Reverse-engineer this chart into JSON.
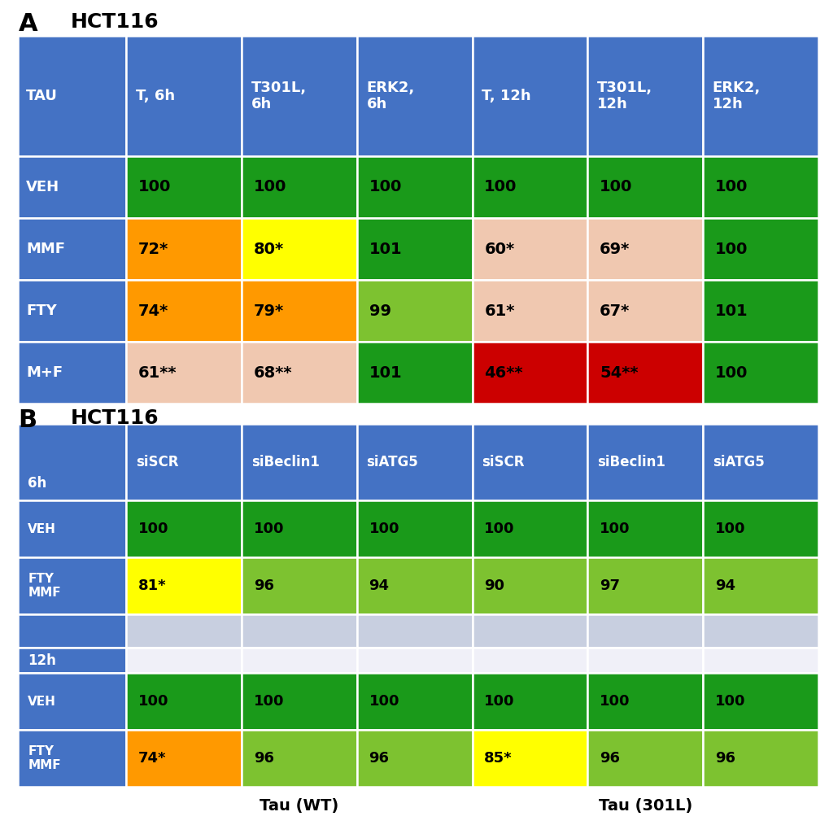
{
  "panel_A": {
    "header_row": [
      "TAU",
      "T, 6h",
      "T301L,\n6h",
      "ERK2,\n6h",
      "T, 12h",
      "T301L,\n12h",
      "ERK2,\n12h"
    ],
    "rows": [
      {
        "label": "VEH",
        "values": [
          "100",
          "100",
          "100",
          "100",
          "100",
          "100"
        ],
        "colors": [
          "#1a9a1a",
          "#1a9a1a",
          "#1a9a1a",
          "#1a9a1a",
          "#1a9a1a",
          "#1a9a1a"
        ]
      },
      {
        "label": "MMF",
        "values": [
          "72*",
          "80*",
          "101",
          "60*",
          "69*",
          "100"
        ],
        "colors": [
          "#ff9900",
          "#ffff00",
          "#1a9a1a",
          "#f0c8b0",
          "#f0c8b0",
          "#1a9a1a"
        ]
      },
      {
        "label": "FTY",
        "values": [
          "74*",
          "79*",
          "99",
          "61*",
          "67*",
          "101"
        ],
        "colors": [
          "#ff9900",
          "#ff9900",
          "#7dc230",
          "#f0c8b0",
          "#f0c8b0",
          "#1a9a1a"
        ]
      },
      {
        "label": "M+F",
        "values": [
          "61**",
          "68**",
          "101",
          "46**",
          "54**",
          "100"
        ],
        "colors": [
          "#f0c8b0",
          "#f0c8b0",
          "#1a9a1a",
          "#cc0000",
          "#cc0000",
          "#1a9a1a"
        ]
      }
    ],
    "header_bg": "#4472c4",
    "label_bg": "#4472c4",
    "header_text_color": "white",
    "label_text_color": "white",
    "value_text_color": "black"
  },
  "panel_B": {
    "header_row": [
      "",
      "siSCR",
      "siBeclin1",
      "siATG5",
      "siSCR",
      "siBeclin1",
      "siATG5"
    ],
    "rows_6h": [
      {
        "label": "VEH",
        "values": [
          "100",
          "100",
          "100",
          "100",
          "100",
          "100"
        ],
        "colors": [
          "#1a9a1a",
          "#1a9a1a",
          "#1a9a1a",
          "#1a9a1a",
          "#1a9a1a",
          "#1a9a1a"
        ]
      },
      {
        "label": "FTY\nMMF",
        "values": [
          "81*",
          "96",
          "94",
          "90",
          "97",
          "94"
        ],
        "colors": [
          "#ffff00",
          "#7dc230",
          "#7dc230",
          "#7dc230",
          "#7dc230",
          "#7dc230"
        ]
      }
    ],
    "rows_12h": [
      {
        "label": "VEH",
        "values": [
          "100",
          "100",
          "100",
          "100",
          "100",
          "100"
        ],
        "colors": [
          "#1a9a1a",
          "#1a9a1a",
          "#1a9a1a",
          "#1a9a1a",
          "#1a9a1a",
          "#1a9a1a"
        ]
      },
      {
        "label": "FTY\nMMF",
        "values": [
          "74*",
          "96",
          "96",
          "85*",
          "96",
          "96"
        ],
        "colors": [
          "#ff9900",
          "#7dc230",
          "#7dc230",
          "#ffff00",
          "#7dc230",
          "#7dc230"
        ]
      }
    ],
    "header_bg": "#4472c4",
    "label_bg": "#4472c4",
    "separator_bg": "#c8cfe0",
    "white_bg": "#f0f0f8",
    "header_text_color": "white",
    "label_text_color": "white",
    "value_text_color": "black",
    "xlabel_left": "Tau (WT)",
    "xlabel_right": "Tau (301L)"
  }
}
